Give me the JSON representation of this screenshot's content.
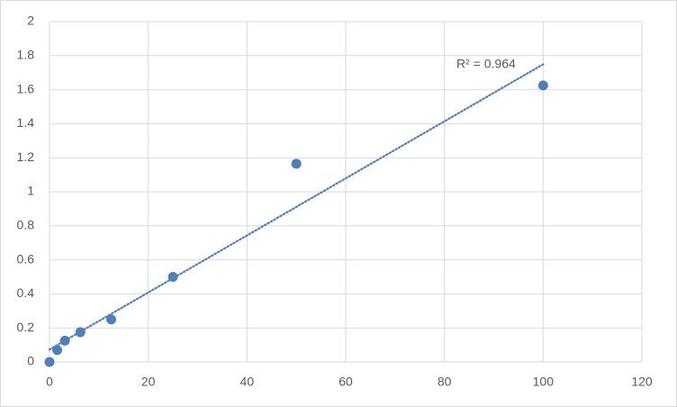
{
  "chart_data": {
    "type": "scatter",
    "series": [
      {
        "color": "#4e7fbb",
        "x": [
          0,
          1.5625,
          3.125,
          6.25,
          12.5,
          25,
          50,
          100
        ],
        "values": [
          0,
          0.07,
          0.125,
          0.175,
          0.25,
          0.5,
          1.165,
          1.625
        ]
      }
    ],
    "trendline": "linear",
    "annotation": "R² = 0.964",
    "xlim": [
      0,
      120
    ],
    "xticks": [
      0,
      20,
      40,
      60,
      80,
      100,
      120
    ],
    "ylim": [
      0,
      2
    ],
    "yticks": [
      0,
      0.2,
      0.4,
      0.6,
      0.8,
      1,
      1.2,
      1.4,
      1.6,
      1.8,
      2
    ],
    "grid": true
  }
}
